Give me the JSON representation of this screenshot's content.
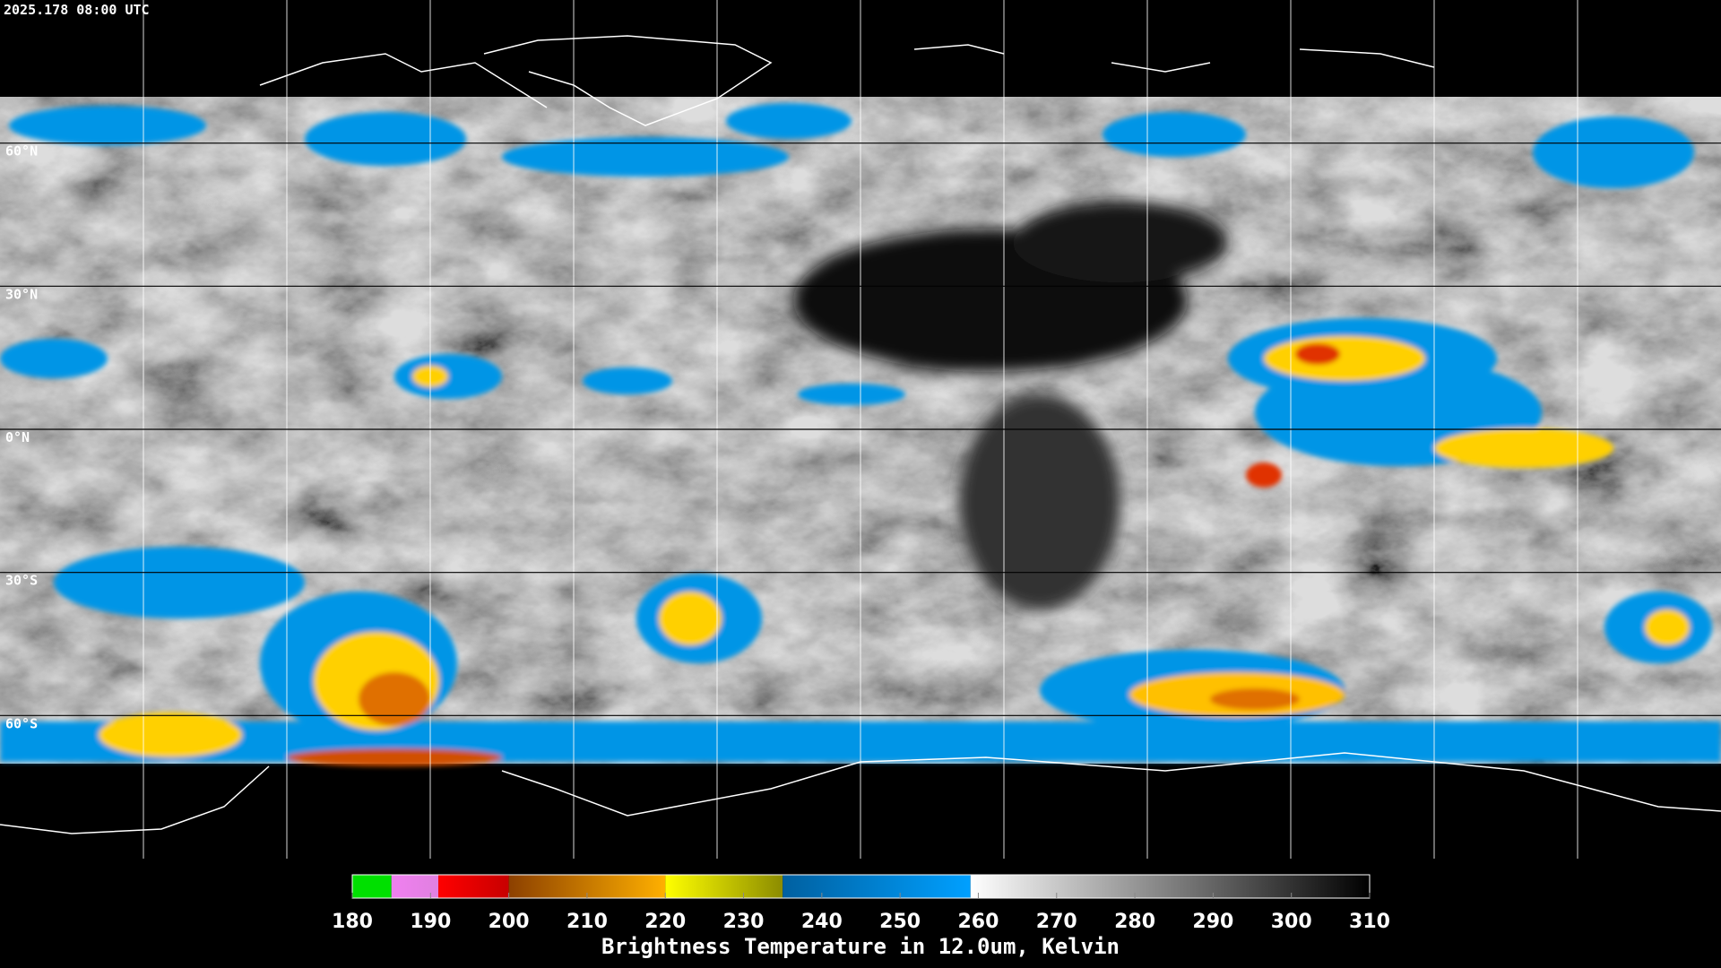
{
  "map": {
    "timestamp": "2025.178 08:00 UTC",
    "lat_labels": [
      "60°N",
      "30°N",
      "0°N",
      "30°S",
      "60°S"
    ]
  },
  "colorbar": {
    "title": "Brightness Temperature in 12.0um, Kelvin",
    "range": [
      180,
      310
    ],
    "ticks": [
      180,
      190,
      200,
      210,
      220,
      230,
      240,
      250,
      260,
      270,
      280,
      290,
      300,
      310
    ],
    "segments": [
      {
        "from": 180,
        "to": 185,
        "colors": [
          "#00e000",
          "#00e000"
        ]
      },
      {
        "from": 185,
        "to": 191,
        "colors": [
          "#f080f0",
          "#e080e0"
        ]
      },
      {
        "from": 191,
        "to": 200,
        "colors": [
          "#ff0000",
          "#c80000"
        ]
      },
      {
        "from": 200,
        "to": 220,
        "colors": [
          "#8c4000",
          "#ffb000"
        ]
      },
      {
        "from": 220,
        "to": 235,
        "colors": [
          "#ffff00",
          "#8c8c00"
        ]
      },
      {
        "from": 235,
        "to": 259,
        "colors": [
          "#0060a0",
          "#00a0ff"
        ]
      },
      {
        "from": 259,
        "to": 310,
        "colors": [
          "#ffffff",
          "#000000"
        ]
      }
    ]
  }
}
